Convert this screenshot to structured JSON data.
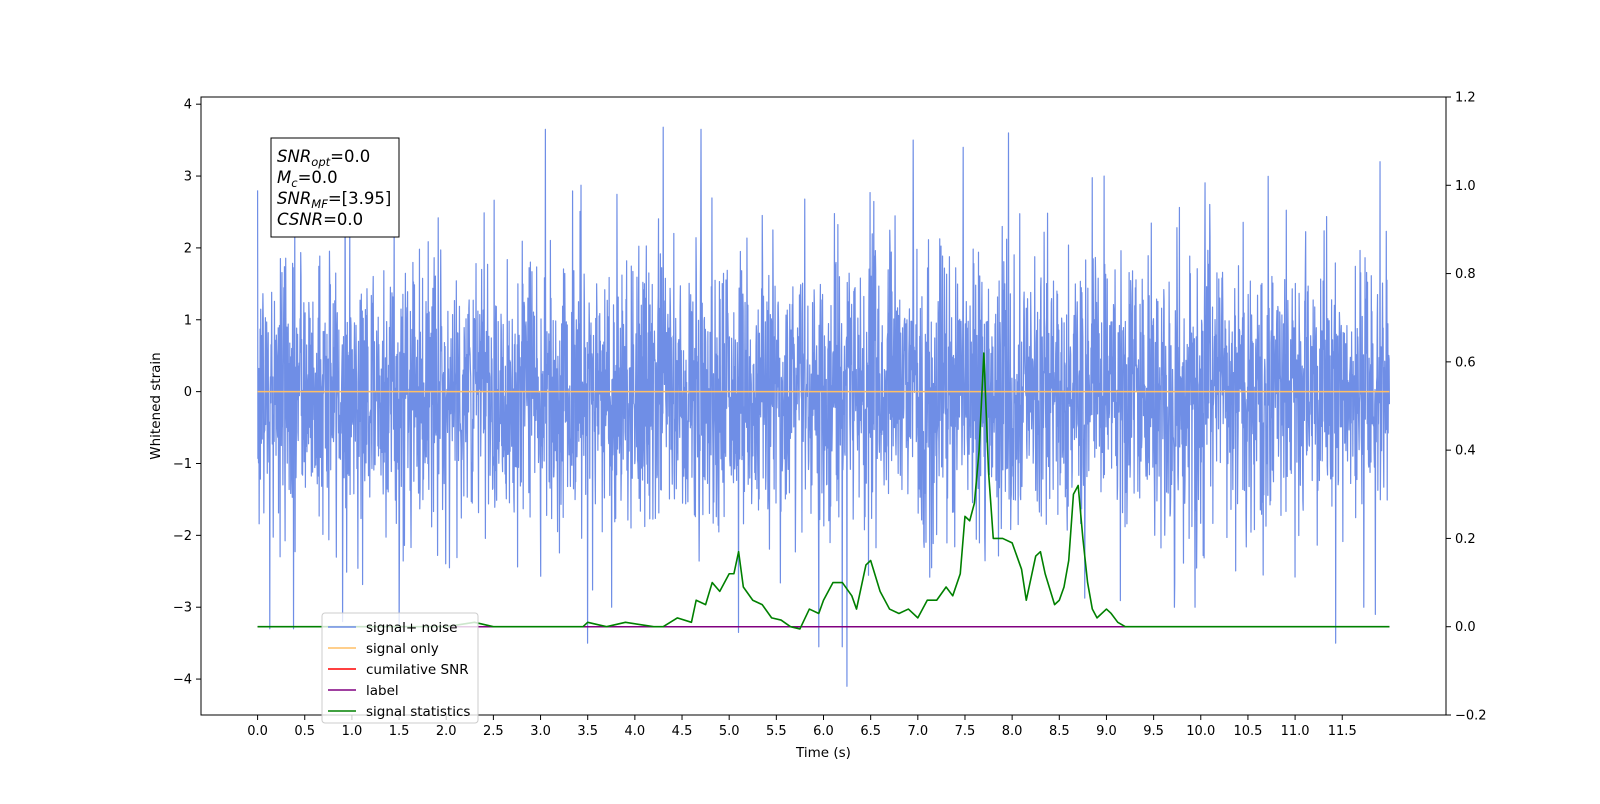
{
  "chart_data": {
    "type": "line",
    "xlabel": "Time (s)",
    "ylabel": "Whitened strain",
    "xlim": [
      -0.6,
      12.6
    ],
    "ylim": [
      -4.5,
      4.1
    ],
    "y2lim": [
      -0.2,
      1.2
    ],
    "x_ticks": [
      0.0,
      0.5,
      1.0,
      1.5,
      2.0,
      2.5,
      3.0,
      3.5,
      4.0,
      4.5,
      5.0,
      5.5,
      6.0,
      6.5,
      7.0,
      7.5,
      8.0,
      8.5,
      9.0,
      9.5,
      10.0,
      10.5,
      11.0,
      11.5
    ],
    "x_tick_labels": [
      "0.0",
      "0.5",
      "1.0",
      "1.5",
      "2.0",
      "2.5",
      "3.0",
      "3.5",
      "4.0",
      "4.5",
      "5.0",
      "5.5",
      "6.0",
      "6.5",
      "7.0",
      "7.5",
      "8.0",
      "8.5",
      "9.0",
      "9.5",
      "10.0",
      "10.5",
      "11.0",
      "11.5"
    ],
    "y_ticks": [
      -4,
      -3,
      -2,
      -1,
      0,
      1,
      2,
      3,
      4
    ],
    "y_tick_labels": [
      "−4",
      "−3",
      "−2",
      "−1",
      "0",
      "1",
      "2",
      "3",
      "4"
    ],
    "y2_ticks": [
      -0.2,
      0.0,
      0.2,
      0.4,
      0.6,
      0.8,
      1.0,
      1.2
    ],
    "y2_tick_labels": [
      "−0.2",
      "0.0",
      "0.2",
      "0.4",
      "0.6",
      "0.8",
      "1.0",
      "1.2"
    ],
    "series": [
      {
        "name": "signal+ noise",
        "color": "#6f8ee6",
        "axis": "left",
        "kind": "noise",
        "x_range": [
          0.0,
          12.0
        ],
        "std": 0.95,
        "extremes": [
          [
            0.0,
            2.8
          ],
          [
            0.13,
            -3.3
          ],
          [
            0.38,
            -3.3
          ],
          [
            0.9,
            -3.2
          ],
          [
            1.5,
            -3.3
          ],
          [
            3.05,
            3.65
          ],
          [
            3.5,
            -3.5
          ],
          [
            4.3,
            3.68
          ],
          [
            4.7,
            3.65
          ],
          [
            5.1,
            -3.35
          ],
          [
            5.95,
            -3.55
          ],
          [
            6.2,
            -3.55
          ],
          [
            6.25,
            -4.1
          ],
          [
            6.95,
            3.5
          ],
          [
            7.48,
            3.4
          ],
          [
            7.96,
            3.6
          ],
          [
            11.43,
            -3.5
          ],
          [
            11.9,
            3.2
          ],
          [
            11.85,
            -3.1
          ]
        ]
      },
      {
        "name": "signal only",
        "color": "#ffbf66",
        "axis": "left",
        "kind": "constant",
        "x_range": [
          0.0,
          12.0
        ],
        "value": 0.0
      },
      {
        "name": "cumilative SNR",
        "color": "#ff0000",
        "axis": "right",
        "kind": "constant",
        "x_range": [
          0.0,
          12.0
        ],
        "value": 0.0
      },
      {
        "name": "label",
        "color": "#800080",
        "axis": "right",
        "kind": "constant",
        "x_range": [
          0.0,
          12.0
        ],
        "value": 0.0
      },
      {
        "name": "signal statistics",
        "color": "#008000",
        "axis": "right",
        "kind": "points",
        "points": [
          [
            0.0,
            0.0
          ],
          [
            1.0,
            0.0
          ],
          [
            2.0,
            0.0
          ],
          [
            2.3,
            0.01
          ],
          [
            2.5,
            0.0
          ],
          [
            3.0,
            0.0
          ],
          [
            3.3,
            0.0
          ],
          [
            3.45,
            0.0
          ],
          [
            3.5,
            0.01
          ],
          [
            3.7,
            0.0
          ],
          [
            3.9,
            0.01
          ],
          [
            4.2,
            0.0
          ],
          [
            4.3,
            0.0
          ],
          [
            4.45,
            0.02
          ],
          [
            4.6,
            0.01
          ],
          [
            4.65,
            0.06
          ],
          [
            4.75,
            0.05
          ],
          [
            4.82,
            0.1
          ],
          [
            4.9,
            0.08
          ],
          [
            5.0,
            0.12
          ],
          [
            5.05,
            0.12
          ],
          [
            5.1,
            0.17
          ],
          [
            5.15,
            0.09
          ],
          [
            5.25,
            0.06
          ],
          [
            5.35,
            0.05
          ],
          [
            5.45,
            0.02
          ],
          [
            5.55,
            0.015
          ],
          [
            5.65,
            0.0
          ],
          [
            5.75,
            -0.005
          ],
          [
            5.85,
            0.04
          ],
          [
            5.95,
            0.03
          ],
          [
            6.0,
            0.06
          ],
          [
            6.1,
            0.1
          ],
          [
            6.2,
            0.1
          ],
          [
            6.3,
            0.07
          ],
          [
            6.35,
            0.04
          ],
          [
            6.45,
            0.14
          ],
          [
            6.5,
            0.15
          ],
          [
            6.6,
            0.08
          ],
          [
            6.7,
            0.04
          ],
          [
            6.8,
            0.03
          ],
          [
            6.9,
            0.04
          ],
          [
            7.0,
            0.02
          ],
          [
            7.1,
            0.06
          ],
          [
            7.2,
            0.06
          ],
          [
            7.3,
            0.09
          ],
          [
            7.37,
            0.07
          ],
          [
            7.45,
            0.12
          ],
          [
            7.5,
            0.25
          ],
          [
            7.55,
            0.24
          ],
          [
            7.6,
            0.28
          ],
          [
            7.65,
            0.4
          ],
          [
            7.7,
            0.62
          ],
          [
            7.75,
            0.35
          ],
          [
            7.8,
            0.2
          ],
          [
            7.9,
            0.2
          ],
          [
            8.0,
            0.19
          ],
          [
            8.1,
            0.13
          ],
          [
            8.15,
            0.06
          ],
          [
            8.25,
            0.16
          ],
          [
            8.3,
            0.17
          ],
          [
            8.35,
            0.12
          ],
          [
            8.45,
            0.05
          ],
          [
            8.5,
            0.06
          ],
          [
            8.55,
            0.09
          ],
          [
            8.6,
            0.15
          ],
          [
            8.65,
            0.3
          ],
          [
            8.7,
            0.32
          ],
          [
            8.75,
            0.2
          ],
          [
            8.8,
            0.1
          ],
          [
            8.85,
            0.04
          ],
          [
            8.9,
            0.02
          ],
          [
            9.0,
            0.04
          ],
          [
            9.05,
            0.03
          ],
          [
            9.12,
            0.01
          ],
          [
            9.2,
            0.0
          ],
          [
            9.5,
            0.0
          ],
          [
            10.0,
            0.0
          ],
          [
            11.0,
            0.0
          ],
          [
            12.0,
            0.0
          ]
        ]
      }
    ],
    "legend": {
      "placement": "lower-left",
      "entries": [
        "signal+ noise",
        "signal only",
        "cumilative SNR",
        "label",
        "signal statistics"
      ]
    },
    "info_box": {
      "lines": [
        {
          "symbol": "SNR",
          "subscript": "opt",
          "value": "=0.0"
        },
        {
          "symbol": "M",
          "subscript": "c",
          "value": "=0.0"
        },
        {
          "symbol": "SNR",
          "subscript": "MF",
          "value": "=[3.95]"
        },
        {
          "symbol": "CSNR",
          "subscript": "",
          "value": "=0.0"
        }
      ]
    }
  }
}
